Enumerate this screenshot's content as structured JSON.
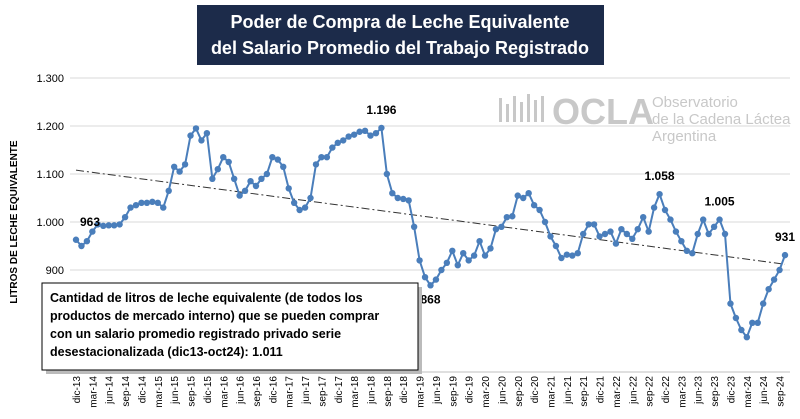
{
  "chart_data": {
    "type": "line",
    "title": [
      "Poder de Compra de Leche Equivalente",
      "del Salario Promedio del Trabajo Registrado"
    ],
    "y_label": "LITROS DE LECHE EQUIVALENTE",
    "logo": {
      "name": "OCLA",
      "lines": [
        "Observatorio",
        "de la Cadena Láctea",
        "Argentina"
      ]
    },
    "note": [
      "Cantidad de litros de leche equivalente (de todos los",
      "productos de mercado interno) que se pueden comprar",
      "con un salario promedio registrado privado serie",
      "desestacionalizada (dic13-oct24): 1.011"
    ],
    "categories": [
      "dic-13",
      null,
      null,
      "mar-14",
      null,
      null,
      "jun-14",
      null,
      null,
      "sep-14",
      null,
      null,
      "dic-14",
      null,
      null,
      "mar-15",
      null,
      null,
      "jun-15",
      null,
      null,
      "sep-15",
      null,
      null,
      "dic-15",
      null,
      null,
      "mar-16",
      null,
      null,
      "jun-16",
      null,
      null,
      "sep-16",
      null,
      null,
      "dic-16",
      null,
      null,
      "mar-17",
      null,
      null,
      "jun-17",
      null,
      null,
      "sep-17",
      null,
      null,
      "dic-17",
      null,
      null,
      "mar-18",
      null,
      null,
      "jun-18",
      null,
      null,
      "sep-18",
      null,
      null,
      "dic-18",
      null,
      null,
      "mar-19",
      null,
      null,
      "jun-19",
      null,
      null,
      "sep-19",
      null,
      null,
      "dic-19",
      null,
      null,
      "mar-20",
      null,
      null,
      "jun-20",
      null,
      null,
      "sep-20",
      null,
      null,
      "dic-20",
      null,
      null,
      "mar-21",
      null,
      null,
      "jun-21",
      null,
      null,
      "sep-21",
      null,
      null,
      "dic-21",
      null,
      null,
      "mar-22",
      null,
      null,
      "jun-22",
      null,
      null,
      "sep-22",
      null,
      null,
      "dic-22",
      null,
      null,
      "mar-23",
      null,
      null,
      "jun-23",
      null,
      null,
      "sep-23",
      null,
      null,
      "dic-23",
      null,
      null,
      "mar-24",
      null,
      null,
      "jun-24",
      null,
      null,
      "sep-24",
      null
    ],
    "values": [
      963,
      950,
      960,
      980,
      995,
      992,
      993,
      993,
      995,
      1010,
      1030,
      1035,
      1040,
      1040,
      1042,
      1040,
      1030,
      1065,
      1115,
      1105,
      1120,
      1180,
      1195,
      1170,
      1185,
      1090,
      1110,
      1135,
      1125,
      1090,
      1055,
      1065,
      1085,
      1075,
      1090,
      1100,
      1135,
      1130,
      1115,
      1070,
      1040,
      1025,
      1030,
      1050,
      1120,
      1135,
      1135,
      1155,
      1165,
      1170,
      1178,
      1182,
      1188,
      1190,
      1180,
      1185,
      1196,
      1100,
      1060,
      1050,
      1048,
      1045,
      990,
      920,
      885,
      868,
      880,
      900,
      915,
      940,
      910,
      935,
      920,
      930,
      960,
      930,
      945,
      985,
      990,
      1010,
      1012,
      1055,
      1050,
      1060,
      1035,
      1025,
      1000,
      970,
      950,
      925,
      932,
      930,
      935,
      975,
      995,
      995,
      970,
      975,
      980,
      955,
      985,
      975,
      965,
      985,
      1010,
      980,
      1030,
      1058,
      1025,
      1005,
      980,
      960,
      940,
      935,
      975,
      1005,
      975,
      990,
      1005,
      975,
      830,
      800,
      775,
      760,
      790,
      790,
      830,
      860,
      880,
      900,
      931
    ],
    "value_labels": [
      "963",
      null,
      null,
      null,
      null,
      null,
      null,
      null,
      null,
      null,
      null,
      null,
      null,
      null,
      null,
      null,
      null,
      null,
      null,
      null,
      null,
      null,
      null,
      null,
      null,
      null,
      null,
      null,
      null,
      null,
      null,
      null,
      null,
      null,
      null,
      null,
      null,
      null,
      null,
      null,
      null,
      null,
      null,
      null,
      null,
      null,
      null,
      null,
      null,
      null,
      null,
      null,
      null,
      null,
      null,
      null,
      "1.196",
      null,
      null,
      null,
      null,
      null,
      null,
      null,
      null,
      "868",
      null,
      null,
      null,
      null,
      null,
      null,
      null,
      null,
      null,
      null,
      null,
      null,
      null,
      null,
      null,
      null,
      null,
      null,
      null,
      null,
      null,
      null,
      null,
      null,
      null,
      null,
      null,
      null,
      null,
      null,
      null,
      null,
      null,
      null,
      null,
      null,
      null,
      null,
      null,
      null,
      null,
      "1.058",
      null,
      null,
      null,
      null,
      null,
      null,
      null,
      null,
      null,
      null,
      "1.005",
      null,
      null,
      null,
      null,
      null,
      null,
      null,
      null,
      null,
      null,
      null,
      "931"
    ],
    "color": "#4a7ebb",
    "trend": [
      1108,
      912
    ],
    "ylim": [
      700,
      1300
    ],
    "yticks": [
      {
        "value": 900,
        "label": "900"
      },
      {
        "value": 1000,
        "label": "1.000"
      },
      {
        "value": 1100,
        "label": "1.100"
      },
      {
        "value": 1200,
        "label": "1.200"
      },
      {
        "value": 1300,
        "label": "1.300"
      }
    ],
    "grid": true
  }
}
